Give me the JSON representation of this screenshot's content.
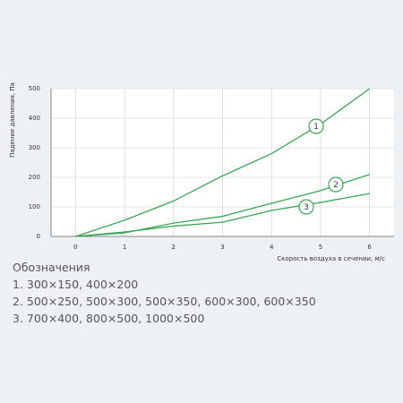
{
  "chart_data": {
    "type": "line",
    "y_label": "Падение давления, Па",
    "x_label": "Скорость воздуха в сечении, м/с",
    "x": [
      0,
      1,
      2,
      3,
      4,
      5,
      6
    ],
    "series": [
      {
        "name": "1",
        "color": "#3aa655",
        "values": [
          0,
          55,
          120,
          205,
          280,
          380,
          500
        ]
      },
      {
        "name": "2",
        "color": "#3aa655",
        "values": [
          0,
          12,
          45,
          68,
          112,
          155,
          210
        ]
      },
      {
        "name": "3",
        "color": "#3aa655",
        "values": [
          0,
          15,
          35,
          48,
          88,
          115,
          145
        ]
      }
    ],
    "xlim": [
      -0.5,
      6.5
    ],
    "xticks": [
      0,
      1,
      2,
      3,
      4,
      5,
      6
    ],
    "ylim": [
      0,
      500
    ],
    "yticks": [
      0,
      100,
      200,
      300,
      400,
      500
    ],
    "grid": true,
    "legend_title": "Обозначения",
    "legend_items": [
      "1. 300×150, 400×200",
      "2. 500×250, 500×300, 500×350, 600×300, 600×350",
      "3. 700×400, 800×500, 1000×500"
    ]
  }
}
